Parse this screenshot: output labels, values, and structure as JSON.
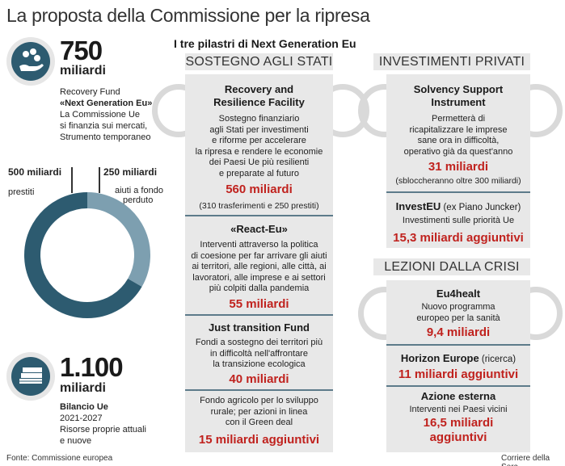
{
  "title": "La proposta della Commissione per la ripresa",
  "left": {
    "fund_number": "750",
    "fund_unit": "miliardi",
    "fund_lines": [
      "Recovery Fund",
      "«Next Generation Eu»",
      "La Commissione Ue",
      "si finanzia sui mercati,",
      "Strumento temporaneo"
    ],
    "loans_value": "500 miliardi",
    "loans_label": "prestiti",
    "grants_value": "250  miliardi",
    "grants_label_1": "aiuti a fondo",
    "grants_label_2": "perduto",
    "budget_number": "1.100",
    "budget_unit": "miliardi",
    "budget_lines": [
      "Bilancio Ue",
      "2021-2027",
      "Risorse proprie attuali",
      "e nuove"
    ]
  },
  "chart_data": {
    "type": "pie",
    "categories": [
      "prestiti",
      "aiuti a fondo perduto"
    ],
    "values": [
      500,
      250
    ],
    "colors": [
      "#2d5b70",
      "#7d9fb0"
    ]
  },
  "pillars_title": "I tre pilastri di Next Generation Eu",
  "sostegno": {
    "head": "SOSTEGNO AGLI STATI",
    "rrf_title_1": "Recovery and",
    "rrf_title_2": "Resilience Facility",
    "rrf_desc": [
      "Sostegno finanziario",
      "agli Stati per investimenti",
      "e riforme per accelerare",
      "la ripresa e rendere le economie",
      "dei Paesi Ue più resilienti",
      "e preparate al futuro"
    ],
    "rrf_value": "560 miliardi",
    "rrf_note": "(310 trasferimenti e 250 prestiti)",
    "react_title": "«React-Eu»",
    "react_desc": [
      "Interventi attraverso la politica",
      "di coesione per far arrivare gli aiuti",
      "ai territori, alle regioni, alle città, ai",
      "lavoratori, alle imprese e ai settori",
      "più colpiti dalla pandemia"
    ],
    "react_value": "55 miliardi",
    "jtf_title": "Just transition Fund",
    "jtf_desc": [
      "Fondi a sostegno dei territori più",
      "in difficoltà nell'affrontare",
      "la transizione ecologica"
    ],
    "jtf_value": "40 miliardi",
    "agri_desc": [
      "Fondo agricolo per lo sviluppo",
      "rurale; per azioni in linea",
      "con il Green deal"
    ],
    "agri_value": "15 miliardi aggiuntivi"
  },
  "investimenti": {
    "head": "INVESTIMENTI PRIVATI",
    "ssi_title_1": "Solvency Support",
    "ssi_title_2": "Instrument",
    "ssi_desc": [
      "Permetterà di",
      "ricapitalizzare le imprese",
      "sane ora in difficoltà,",
      "operativo già da quest'anno"
    ],
    "ssi_value": "31 miliardi",
    "ssi_note": "(sbloccheranno oltre 300 miliardi)",
    "invest_title": "InvestEU",
    "invest_title_extra": " (ex Piano Juncker)",
    "invest_desc": "Investimenti sulle priorità Ue",
    "invest_value": "15,3 miliardi aggiuntivi"
  },
  "lezioni": {
    "head": "LEZIONI DALLA CRISI",
    "eu4_title": "Eu4healt",
    "eu4_desc": [
      "Nuovo programma",
      "europeo per la sanità"
    ],
    "eu4_value": "9,4 miliardi",
    "horizon_title": "Horizon Europe",
    "horizon_extra": " (ricerca)",
    "horizon_value": "11 miliardi aggiuntivi",
    "azione_title": "Azione esterna",
    "azione_desc": "Interventi nei Paesi vicini",
    "azione_value_1": "16,5 miliardi",
    "azione_value_2": "aggiuntivi"
  },
  "footer": {
    "source": "Fonte: Commissione europea",
    "credit": "Corriere della Sera"
  }
}
